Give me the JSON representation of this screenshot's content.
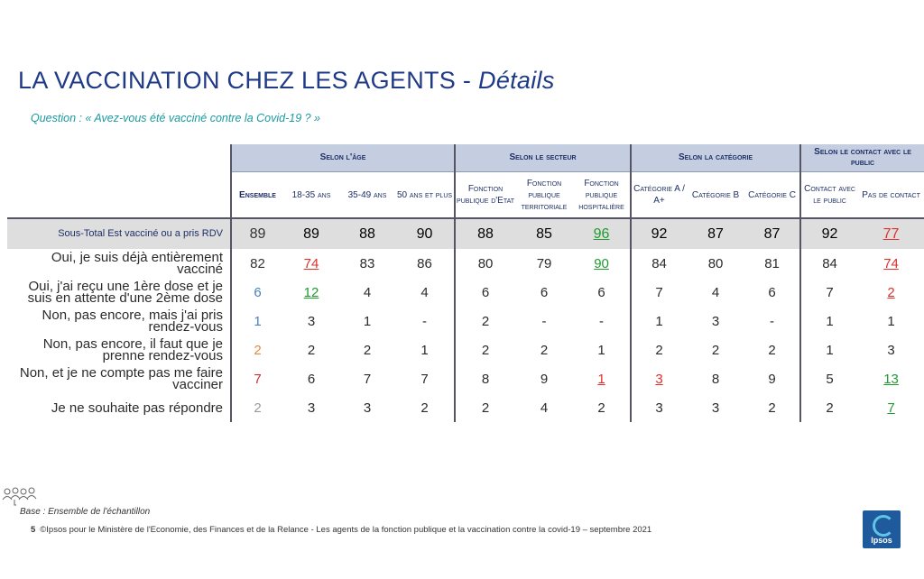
{
  "title": {
    "main": "LA VACCINATION CHEZ LES AGENTS - ",
    "sub": "Détails"
  },
  "question": "Question : « Avez-vous été vacciné contre la Covid-19 ? »",
  "groups": [
    {
      "label": "Selon l'âge"
    },
    {
      "label": "Selon le secteur"
    },
    {
      "label": "Selon la catégorie"
    },
    {
      "label": "Selon le contact avec le public"
    }
  ],
  "columns": [
    {
      "label": "Ensemble"
    },
    {
      "label": "18-35 ans"
    },
    {
      "label": "35-49 ans"
    },
    {
      "label": "50 ans et plus"
    },
    {
      "label": "Fonction publique d'Etat"
    },
    {
      "label": "Fonction publique territoriale"
    },
    {
      "label": "Fonction publique hospitalière"
    },
    {
      "label": "Catégorie A / A+"
    },
    {
      "label": "Catégorie B"
    },
    {
      "label": "Catégorie C"
    },
    {
      "label": "Contact avec le public"
    },
    {
      "label": "Pas de contact"
    }
  ],
  "rows": [
    {
      "label": "Sous-Total Est vacciné ou a pris RDV",
      "values": [
        "89",
        "89",
        "88",
        "90",
        "88",
        "85",
        "96",
        "92",
        "87",
        "87",
        "92",
        "77"
      ]
    },
    {
      "label": "Oui, je suis déjà entièrement vacciné",
      "values": [
        "82",
        "74",
        "83",
        "86",
        "80",
        "79",
        "90",
        "84",
        "80",
        "81",
        "84",
        "74"
      ]
    },
    {
      "label": "Oui, j'ai reçu une 1ère dose et je suis en attente d'une 2ème dose",
      "values": [
        "6",
        "12",
        "4",
        "4",
        "6",
        "6",
        "6",
        "7",
        "4",
        "6",
        "7",
        "2"
      ]
    },
    {
      "label": "Non, pas encore, mais j'ai pris rendez-vous",
      "values": [
        "1",
        "3",
        "1",
        "-",
        "2",
        "-",
        "-",
        "1",
        "3",
        "-",
        "1",
        "1"
      ]
    },
    {
      "label": "Non, pas encore, il faut que je prenne rendez-vous",
      "values": [
        "2",
        "2",
        "2",
        "1",
        "2",
        "2",
        "1",
        "2",
        "2",
        "2",
        "1",
        "3"
      ]
    },
    {
      "label": "Non, et je ne compte pas me faire vacciner",
      "values": [
        "7",
        "6",
        "7",
        "7",
        "8",
        "9",
        "1",
        "3",
        "8",
        "9",
        "5",
        "13"
      ]
    },
    {
      "label": "Je ne souhaite pas répondre",
      "values": [
        "2",
        "3",
        "3",
        "2",
        "2",
        "4",
        "2",
        "3",
        "3",
        "2",
        "2",
        "7"
      ]
    }
  ],
  "base": "Base : Ensemble de l'échantillon",
  "footer": {
    "page": "5",
    "text": "©Ipsos pour le Ministère de l'Economie, des Finances et de la Relance - Les agents de la fonction publique et la vaccination contre la covid-19 – septembre 2021"
  },
  "logo": "Ipsos",
  "colors": {
    "title": "#1f3a86",
    "question": "#1a9aa0",
    "header_bg": "#c5cee0",
    "subtotal_bg": "#dedede",
    "significant_up": "#1f9b2f",
    "significant_down": "#e0302a"
  }
}
